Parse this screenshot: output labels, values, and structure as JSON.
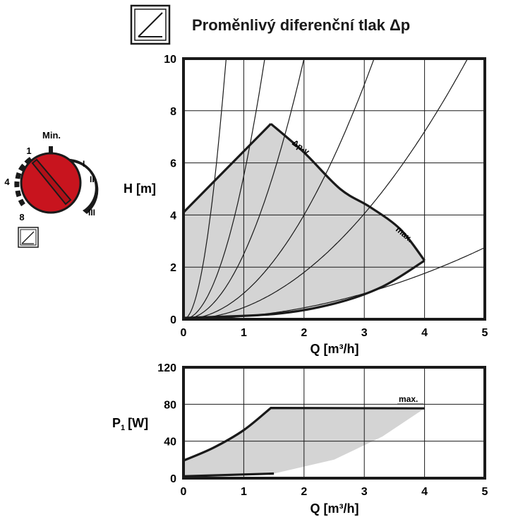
{
  "header": {
    "title": "Proměnlivý diferenční tlak Δp",
    "mode_icon": "proportional-pressure-icon"
  },
  "dial": {
    "min_label": "Min.",
    "position_labels": [
      "1",
      "4",
      "8"
    ],
    "speed_labels": [
      "I",
      "II",
      "III"
    ],
    "knob_color": "#c8141e",
    "mode_icon": "proportional-pressure-icon"
  },
  "head_chart": {
    "type": "line",
    "ylabel": "H [m]",
    "xlabel": "Q [m³/h]",
    "xlim": [
      0,
      5
    ],
    "ylim": [
      0,
      10
    ],
    "xticks": [
      "0",
      "1",
      "2",
      "3",
      "4",
      "5"
    ],
    "yticks": [
      "0",
      "2",
      "4",
      "6",
      "8",
      "10"
    ],
    "grid": true,
    "annotations": [
      "Δp-v",
      "max."
    ],
    "envelope": [
      [
        0,
        4.1
      ],
      [
        1.45,
        7.5
      ],
      [
        2.6,
        5.0
      ],
      [
        3.6,
        3.1
      ],
      [
        4.0,
        2.25
      ],
      [
        3.0,
        1.1
      ],
      [
        1.5,
        0.2
      ],
      [
        0,
        0.05
      ]
    ],
    "dp_v_curve": [
      [
        0,
        4.1
      ],
      [
        1.45,
        7.5
      ]
    ],
    "max_curve": [
      [
        1.45,
        7.5
      ],
      [
        2.0,
        6.4
      ],
      [
        2.6,
        5.0
      ],
      [
        3.1,
        4.3
      ],
      [
        3.6,
        3.45
      ],
      [
        4.0,
        2.25
      ]
    ],
    "min_curve": [
      [
        0,
        0.05
      ],
      [
        1.5,
        0.2
      ],
      [
        2.5,
        0.6
      ],
      [
        3.3,
        1.25
      ],
      [
        4.0,
        2.25
      ]
    ],
    "system_curve_coeffs": [
      20,
      5.5,
      2.5,
      1.0,
      0.45,
      0.11
    ]
  },
  "power_chart": {
    "type": "line",
    "ylabel_main": "P",
    "ylabel_sub": "1",
    "ylabel_unit": "[W]",
    "xlabel": "Q [m³/h]",
    "xlim": [
      0,
      5
    ],
    "ylim": [
      0,
      120
    ],
    "xticks": [
      "0",
      "1",
      "2",
      "3",
      "4",
      "5"
    ],
    "yticks": [
      "0",
      "40",
      "80",
      "120"
    ],
    "grid": true,
    "annotations": [
      "max."
    ],
    "max_curve": [
      [
        0,
        19
      ],
      [
        0.5,
        33
      ],
      [
        1.0,
        52
      ],
      [
        1.45,
        76
      ],
      [
        4.0,
        75.5
      ]
    ],
    "min_curve": [
      [
        0,
        2
      ],
      [
        1.5,
        5
      ]
    ],
    "envelope_lower": [
      [
        1.5,
        5
      ],
      [
        2.5,
        20
      ],
      [
        3.3,
        45
      ],
      [
        4.0,
        75.5
      ]
    ]
  },
  "colors": {
    "fill": "#d4d4d4",
    "line": "#1a1a1a"
  }
}
